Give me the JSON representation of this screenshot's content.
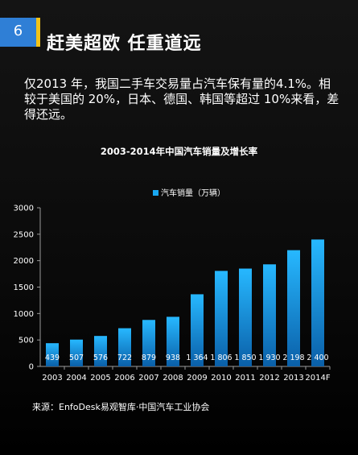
{
  "slide": {
    "number": "6",
    "title": "赶美超欧 任重道远",
    "body": "仅2013 年，我国二手车交易量占汽车保有量的4.1%。相较于美国的 20%，日本、德国、韩国等超过 10%来看，差得还远。",
    "source": "来源：EnfoDesk易观智库·中国汽车工业协会"
  },
  "colors": {
    "badge": "#2f7fd6",
    "badge_stripe": "#f2c318",
    "bar_top": "#27b8ff",
    "bar_bottom": "#0a5fa8",
    "legend_swatch": "#19a8f2"
  },
  "chart_data": {
    "type": "bar",
    "title": "2003-2014年中国汽车销量及增长率",
    "categories": [
      "2003",
      "2004",
      "2005",
      "2006",
      "2007",
      "2008",
      "2009",
      "2010",
      "2011",
      "2012",
      "2013",
      "2014F"
    ],
    "series": [
      {
        "name": "汽车销量（万辆）",
        "values": [
          439,
          507,
          576,
          722,
          879,
          938,
          1364,
          1806,
          1850,
          1930,
          2198,
          2400
        ],
        "labels": [
          "439",
          "507",
          "576",
          "722",
          "879",
          "938",
          "1 364",
          "1 806",
          "1 850",
          "1 930",
          "2 198",
          "2 400"
        ]
      }
    ],
    "ylim": [
      0,
      3000
    ],
    "yticks": [
      "0",
      "500",
      "1000",
      "1500",
      "2000",
      "2500",
      "3000"
    ],
    "ytick_values": [
      0,
      500,
      1000,
      1500,
      2000,
      2500,
      3000
    ],
    "legend_position": "top-center",
    "grid": false,
    "xlabel": "",
    "ylabel": ""
  }
}
